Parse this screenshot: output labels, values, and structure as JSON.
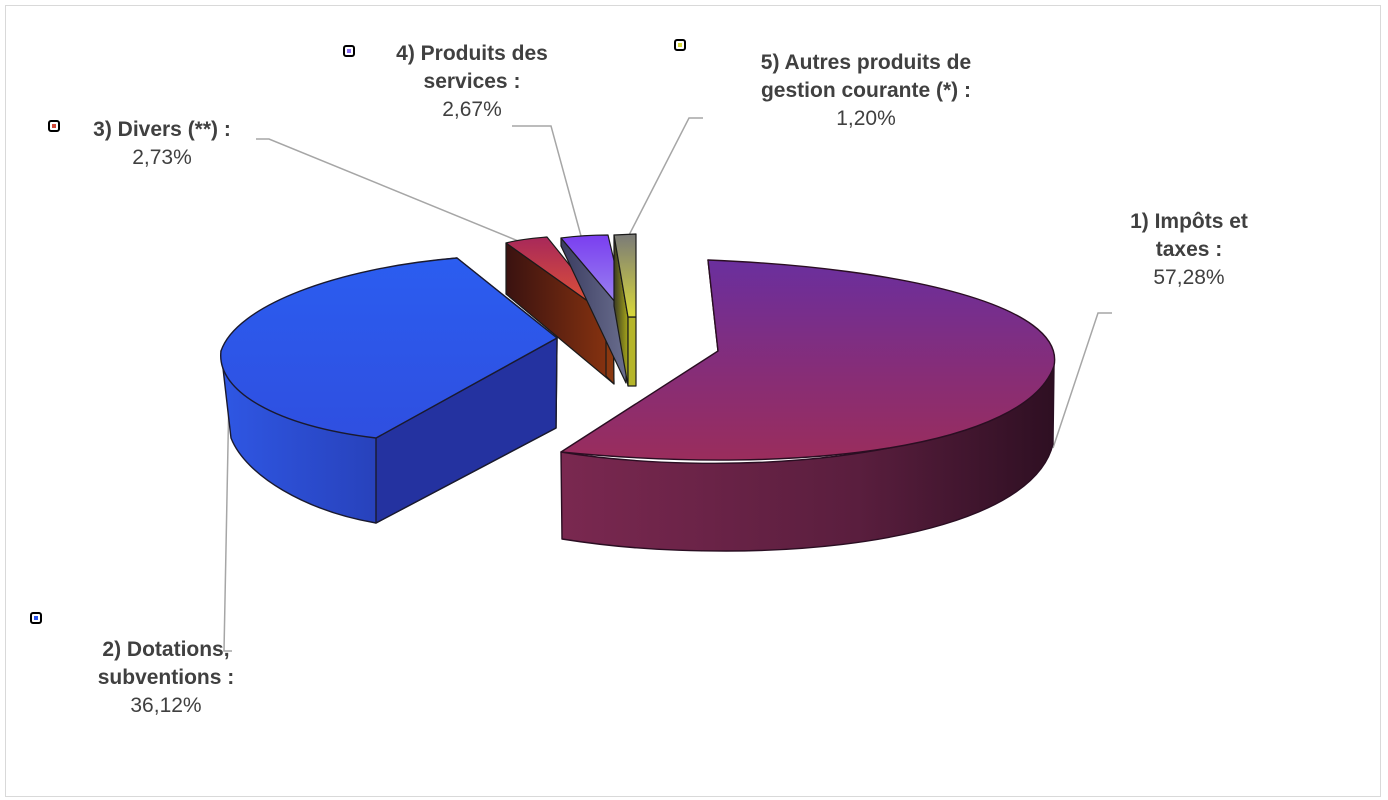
{
  "chart_data": {
    "type": "pie",
    "style": "3d-exploded",
    "legend": "none",
    "slices": [
      {
        "label": "1) Impôts et taxes :",
        "label_lines": [
          "1) Impôts et",
          "taxes :"
        ],
        "value": 57.28,
        "display": "57,28%",
        "color": "#8b2a6e"
      },
      {
        "label": "2) Dotations, subventions :",
        "label_lines": [
          "2) Dotations,",
          "subventions :"
        ],
        "value": 36.12,
        "display": "36,12%",
        "color": "#2d55ee"
      },
      {
        "label": "3) Divers (**) :",
        "label_lines": [
          "3) Divers (**) :"
        ],
        "value": 2.73,
        "display": "2,73%",
        "color": "#d24a3a"
      },
      {
        "label": "4) Produits des services :",
        "label_lines": [
          "4) Produits des",
          "services :"
        ],
        "value": 2.67,
        "display": "2,67%",
        "color": "#8a6cf0"
      },
      {
        "label": "5) Autres produits de gestion courante (*) :",
        "label_lines": [
          "5) Autres produits de",
          "gestion courante (*) :"
        ],
        "value": 1.2,
        "display": "1,20%",
        "color": "#8c8c6a"
      }
    ]
  }
}
